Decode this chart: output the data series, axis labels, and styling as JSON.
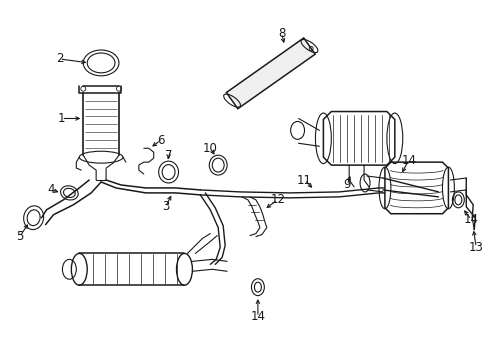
{
  "bg_color": "#ffffff",
  "line_color": "#1a1a1a",
  "figsize": [
    4.89,
    3.6
  ],
  "dpi": 100,
  "font_size": 8.5,
  "lw": 0.8
}
